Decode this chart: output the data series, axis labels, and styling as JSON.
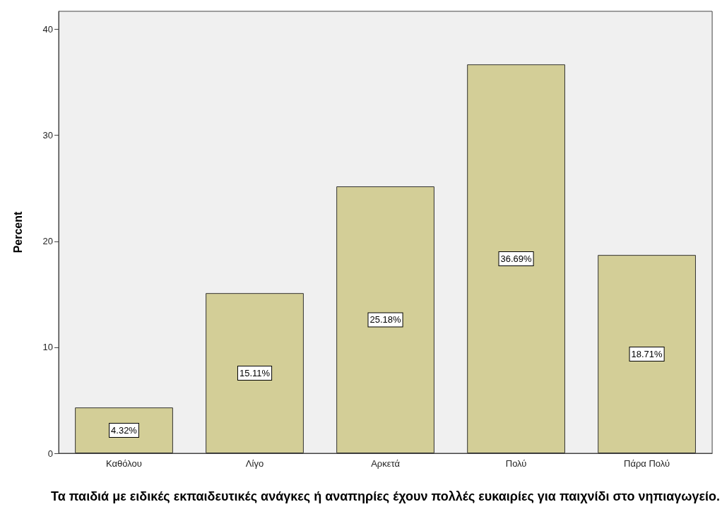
{
  "chart_data": {
    "type": "bar",
    "xlabel": "Τα παιδιά με ειδικές εκπαιδευτικές ανάγκες ή αναπηρίες έχουν πολλές ευκαιρίες για παιχνίδι στο νηπιαγωγείο.",
    "ylabel": "Percent",
    "categories": [
      "Καθόλου",
      "Λίγο",
      "Αρκετά",
      "Πολύ",
      "Πάρα Πολύ"
    ],
    "values": [
      4.32,
      15.11,
      25.18,
      36.69,
      18.71
    ],
    "value_labels": [
      "4.32%",
      "15.11%",
      "25.18%",
      "36.69%",
      "18.71%"
    ],
    "color": "#d3ce97",
    "ylim": [
      0,
      41.7
    ],
    "yticks": [
      0,
      10,
      20,
      30,
      40
    ],
    "grid": false
  }
}
